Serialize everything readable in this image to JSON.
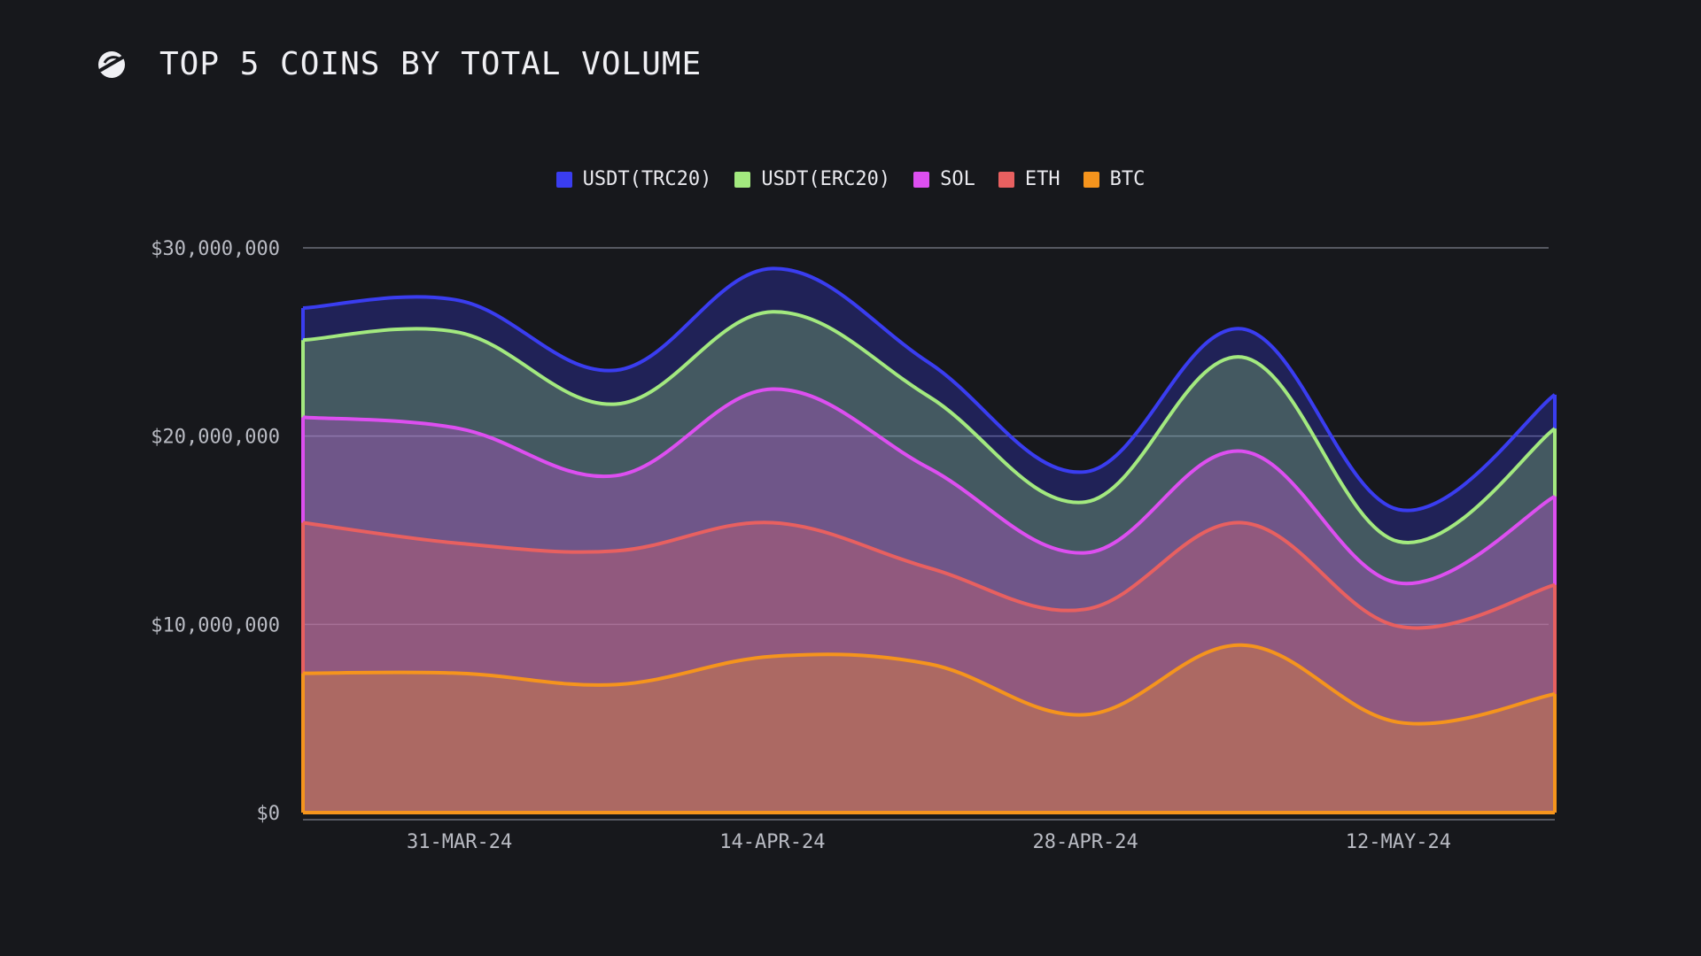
{
  "header": {
    "title": "TOP 5 COINS BY TOTAL VOLUME",
    "logo_icon": "slash-circle-logo-icon"
  },
  "colors": {
    "background": "#17181c",
    "grid": "#6c6e78",
    "axis_text": "#b9bbc3"
  },
  "chart_data": {
    "type": "area",
    "stacked": true,
    "title": "TOP 5 COINS BY TOTAL VOLUME",
    "xlabel": "",
    "ylabel": "",
    "x": [
      "24-MAR-24",
      "31-MAR-24",
      "07-APR-24",
      "14-APR-24",
      "21-APR-24",
      "28-APR-24",
      "05-MAY-24",
      "12-MAY-24",
      "17-MAY-24"
    ],
    "x_tick_labels": [
      "31-MAR-24",
      "14-APR-24",
      "28-APR-24",
      "12-MAY-24"
    ],
    "y_tick_labels": [
      "$30,000,000",
      "$20,000,000",
      "$10,000,000",
      "$0"
    ],
    "y_ticks": [
      0,
      10000000,
      20000000,
      30000000
    ],
    "ylim": [
      0,
      30000000
    ],
    "grid": true,
    "legend_position": "top-center",
    "series_order_bottom_to_top": [
      "BTC",
      "ETH",
      "SOL",
      "USDT(ERC20)",
      "USDT(TRC20)"
    ],
    "series": [
      {
        "name": "USDT(TRC20)",
        "color": "#3a3df0",
        "values": [
          1700000,
          1700000,
          1800000,
          2300000,
          1800000,
          1600000,
          1500000,
          1700000,
          1800000
        ]
      },
      {
        "name": "USDT(ERC20)",
        "color": "#a3e97f",
        "values": [
          4100000,
          5100000,
          3800000,
          4100000,
          3800000,
          2700000,
          5000000,
          2200000,
          3600000
        ]
      },
      {
        "name": "SOL",
        "color": "#dd4ff0",
        "values": [
          5600000,
          6100000,
          4000000,
          7100000,
          5300000,
          3000000,
          3800000,
          2300000,
          4700000
        ]
      },
      {
        "name": "ETH",
        "color": "#e86060",
        "values": [
          8000000,
          6900000,
          7100000,
          7100000,
          5100000,
          5600000,
          6500000,
          5100000,
          5800000
        ]
      },
      {
        "name": "BTC",
        "color": "#f5941d",
        "values": [
          7400000,
          7400000,
          6800000,
          8300000,
          7900000,
          5200000,
          8900000,
          4800000,
          6300000
        ]
      }
    ]
  }
}
